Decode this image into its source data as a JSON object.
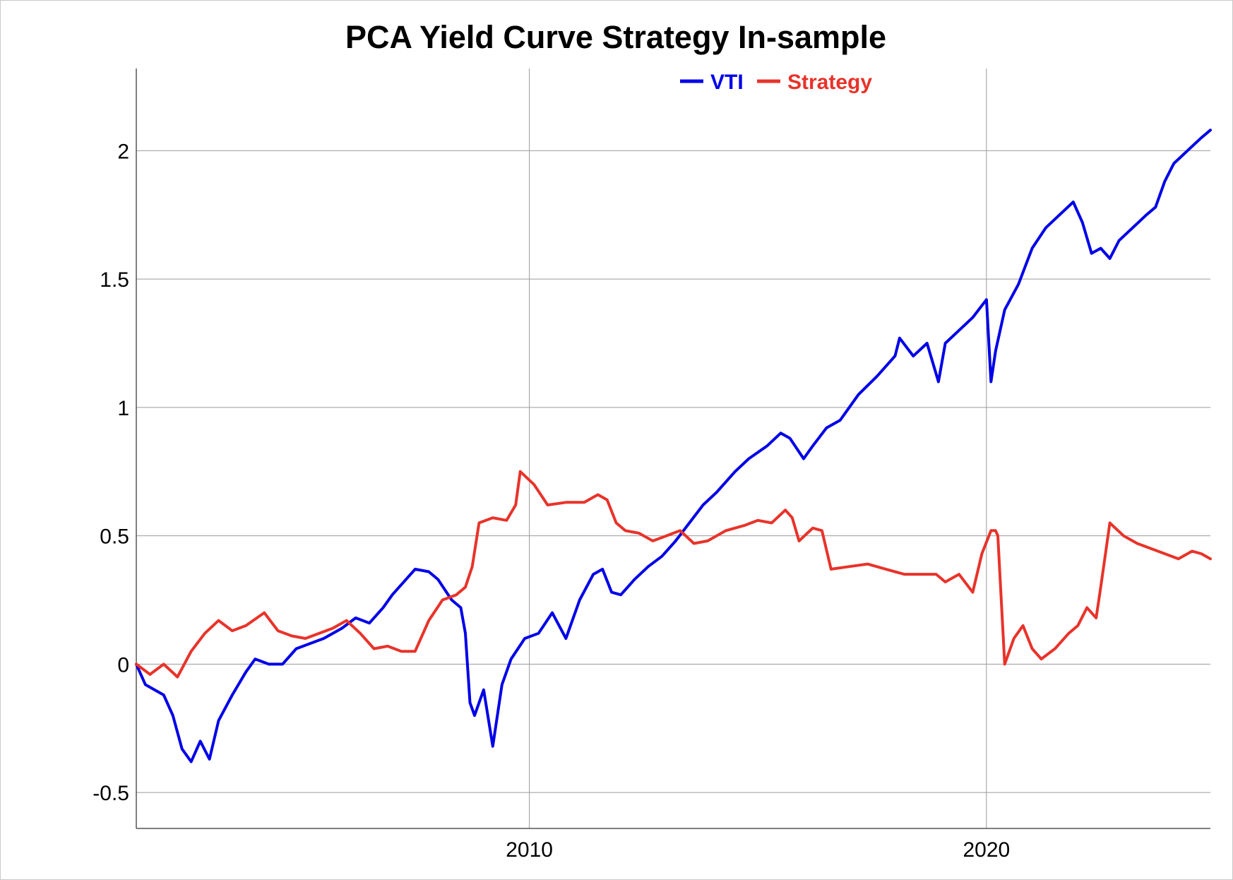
{
  "chart_data": {
    "type": "line",
    "title": "PCA Yield Curve Strategy In-sample",
    "xlabel": "",
    "ylabel": "",
    "xlim": [
      2001.4,
      2024.9
    ],
    "ylim": [
      -0.64,
      2.32
    ],
    "x_ticks": [
      {
        "value": 2010,
        "label": "2010"
      },
      {
        "value": 2020,
        "label": "2020"
      }
    ],
    "y_ticks": [
      {
        "value": -0.5,
        "label": "-0.5"
      },
      {
        "value": 0,
        "label": "0"
      },
      {
        "value": 0.5,
        "label": "0.5"
      },
      {
        "value": 1,
        "label": "1"
      },
      {
        "value": 1.5,
        "label": "1.5"
      },
      {
        "value": 2,
        "label": "2"
      }
    ],
    "grid": true,
    "legend": {
      "placement": "top-center",
      "orientation": "horizontal"
    },
    "series": [
      {
        "name": "VTI",
        "color": "#0000e8",
        "x": [
          2001.4,
          2001.6,
          2001.8,
          2002.0,
          2002.2,
          2002.4,
          2002.6,
          2002.8,
          2003.0,
          2003.2,
          2003.5,
          2003.8,
          2004.0,
          2004.3,
          2004.6,
          2004.9,
          2005.2,
          2005.5,
          2005.9,
          2006.2,
          2006.5,
          2006.8,
          2007.0,
          2007.3,
          2007.5,
          2007.8,
          2008.0,
          2008.3,
          2008.5,
          2008.6,
          2008.7,
          2008.8,
          2009.0,
          2009.2,
          2009.4,
          2009.6,
          2009.9,
          2010.2,
          2010.5,
          2010.8,
          2011.1,
          2011.4,
          2011.6,
          2011.8,
          2012.0,
          2012.3,
          2012.6,
          2012.9,
          2013.2,
          2013.5,
          2013.8,
          2014.1,
          2014.5,
          2014.8,
          2015.2,
          2015.5,
          2015.7,
          2016.0,
          2016.2,
          2016.5,
          2016.8,
          2017.2,
          2017.6,
          2018.0,
          2018.1,
          2018.4,
          2018.7,
          2018.95,
          2019.1,
          2019.4,
          2019.7,
          2020.0,
          2020.1,
          2020.2,
          2020.4,
          2020.7,
          2021.0,
          2021.3,
          2021.6,
          2021.9,
          2022.1,
          2022.3,
          2022.5,
          2022.7,
          2022.9,
          2023.2,
          2023.5,
          2023.7,
          2023.9,
          2024.1,
          2024.4,
          2024.7,
          2024.9
        ],
        "values": [
          0.0,
          -0.08,
          -0.1,
          -0.12,
          -0.2,
          -0.33,
          -0.38,
          -0.3,
          -0.37,
          -0.22,
          -0.12,
          -0.03,
          0.02,
          0.0,
          0.0,
          0.06,
          0.08,
          0.1,
          0.14,
          0.18,
          0.16,
          0.22,
          0.27,
          0.33,
          0.37,
          0.36,
          0.33,
          0.25,
          0.22,
          0.12,
          -0.15,
          -0.2,
          -0.1,
          -0.32,
          -0.08,
          0.02,
          0.1,
          0.12,
          0.2,
          0.1,
          0.25,
          0.35,
          0.37,
          0.28,
          0.27,
          0.33,
          0.38,
          0.42,
          0.48,
          0.55,
          0.62,
          0.67,
          0.75,
          0.8,
          0.85,
          0.9,
          0.88,
          0.8,
          0.85,
          0.92,
          0.95,
          1.05,
          1.12,
          1.2,
          1.27,
          1.2,
          1.25,
          1.1,
          1.25,
          1.3,
          1.35,
          1.42,
          1.1,
          1.22,
          1.38,
          1.48,
          1.62,
          1.7,
          1.75,
          1.8,
          1.72,
          1.6,
          1.62,
          1.58,
          1.65,
          1.7,
          1.75,
          1.78,
          1.88,
          1.95,
          2.0,
          2.05,
          2.08
        ]
      },
      {
        "name": "Strategy",
        "color": "#e8332a",
        "x": [
          2001.4,
          2001.7,
          2002.0,
          2002.3,
          2002.6,
          2002.9,
          2003.2,
          2003.5,
          2003.8,
          2004.2,
          2004.5,
          2004.8,
          2005.1,
          2005.4,
          2005.7,
          2006.0,
          2006.3,
          2006.6,
          2006.9,
          2007.2,
          2007.5,
          2007.8,
          2008.1,
          2008.4,
          2008.6,
          2008.75,
          2008.9,
          2009.2,
          2009.5,
          2009.7,
          2009.8,
          2010.1,
          2010.4,
          2010.8,
          2011.2,
          2011.5,
          2011.7,
          2011.9,
          2012.1,
          2012.4,
          2012.7,
          2013.0,
          2013.3,
          2013.6,
          2013.9,
          2014.3,
          2014.7,
          2015.0,
          2015.3,
          2015.6,
          2015.75,
          2015.9,
          2016.2,
          2016.4,
          2016.6,
          2017.0,
          2017.4,
          2017.8,
          2018.2,
          2018.6,
          2018.9,
          2019.1,
          2019.4,
          2019.7,
          2019.9,
          2020.1,
          2020.2,
          2020.25,
          2020.4,
          2020.6,
          2020.8,
          2021.0,
          2021.2,
          2021.5,
          2021.8,
          2022.0,
          2022.2,
          2022.4,
          2022.5,
          2022.7,
          2023.0,
          2023.3,
          2023.6,
          2023.9,
          2024.2,
          2024.5,
          2024.7,
          2024.9
        ],
        "values": [
          0.0,
          -0.04,
          0.0,
          -0.05,
          0.05,
          0.12,
          0.17,
          0.13,
          0.15,
          0.2,
          0.13,
          0.11,
          0.1,
          0.12,
          0.14,
          0.17,
          0.12,
          0.06,
          0.07,
          0.05,
          0.05,
          0.17,
          0.25,
          0.27,
          0.3,
          0.38,
          0.55,
          0.57,
          0.56,
          0.62,
          0.75,
          0.7,
          0.62,
          0.63,
          0.63,
          0.66,
          0.64,
          0.55,
          0.52,
          0.51,
          0.48,
          0.5,
          0.52,
          0.47,
          0.48,
          0.52,
          0.54,
          0.56,
          0.55,
          0.6,
          0.57,
          0.48,
          0.53,
          0.52,
          0.37,
          0.38,
          0.39,
          0.37,
          0.35,
          0.35,
          0.35,
          0.32,
          0.35,
          0.28,
          0.43,
          0.52,
          0.52,
          0.5,
          0.0,
          0.1,
          0.15,
          0.06,
          0.02,
          0.06,
          0.12,
          0.15,
          0.22,
          0.18,
          0.3,
          0.55,
          0.5,
          0.47,
          0.45,
          0.43,
          0.41,
          0.44,
          0.43,
          0.41
        ]
      }
    ]
  }
}
